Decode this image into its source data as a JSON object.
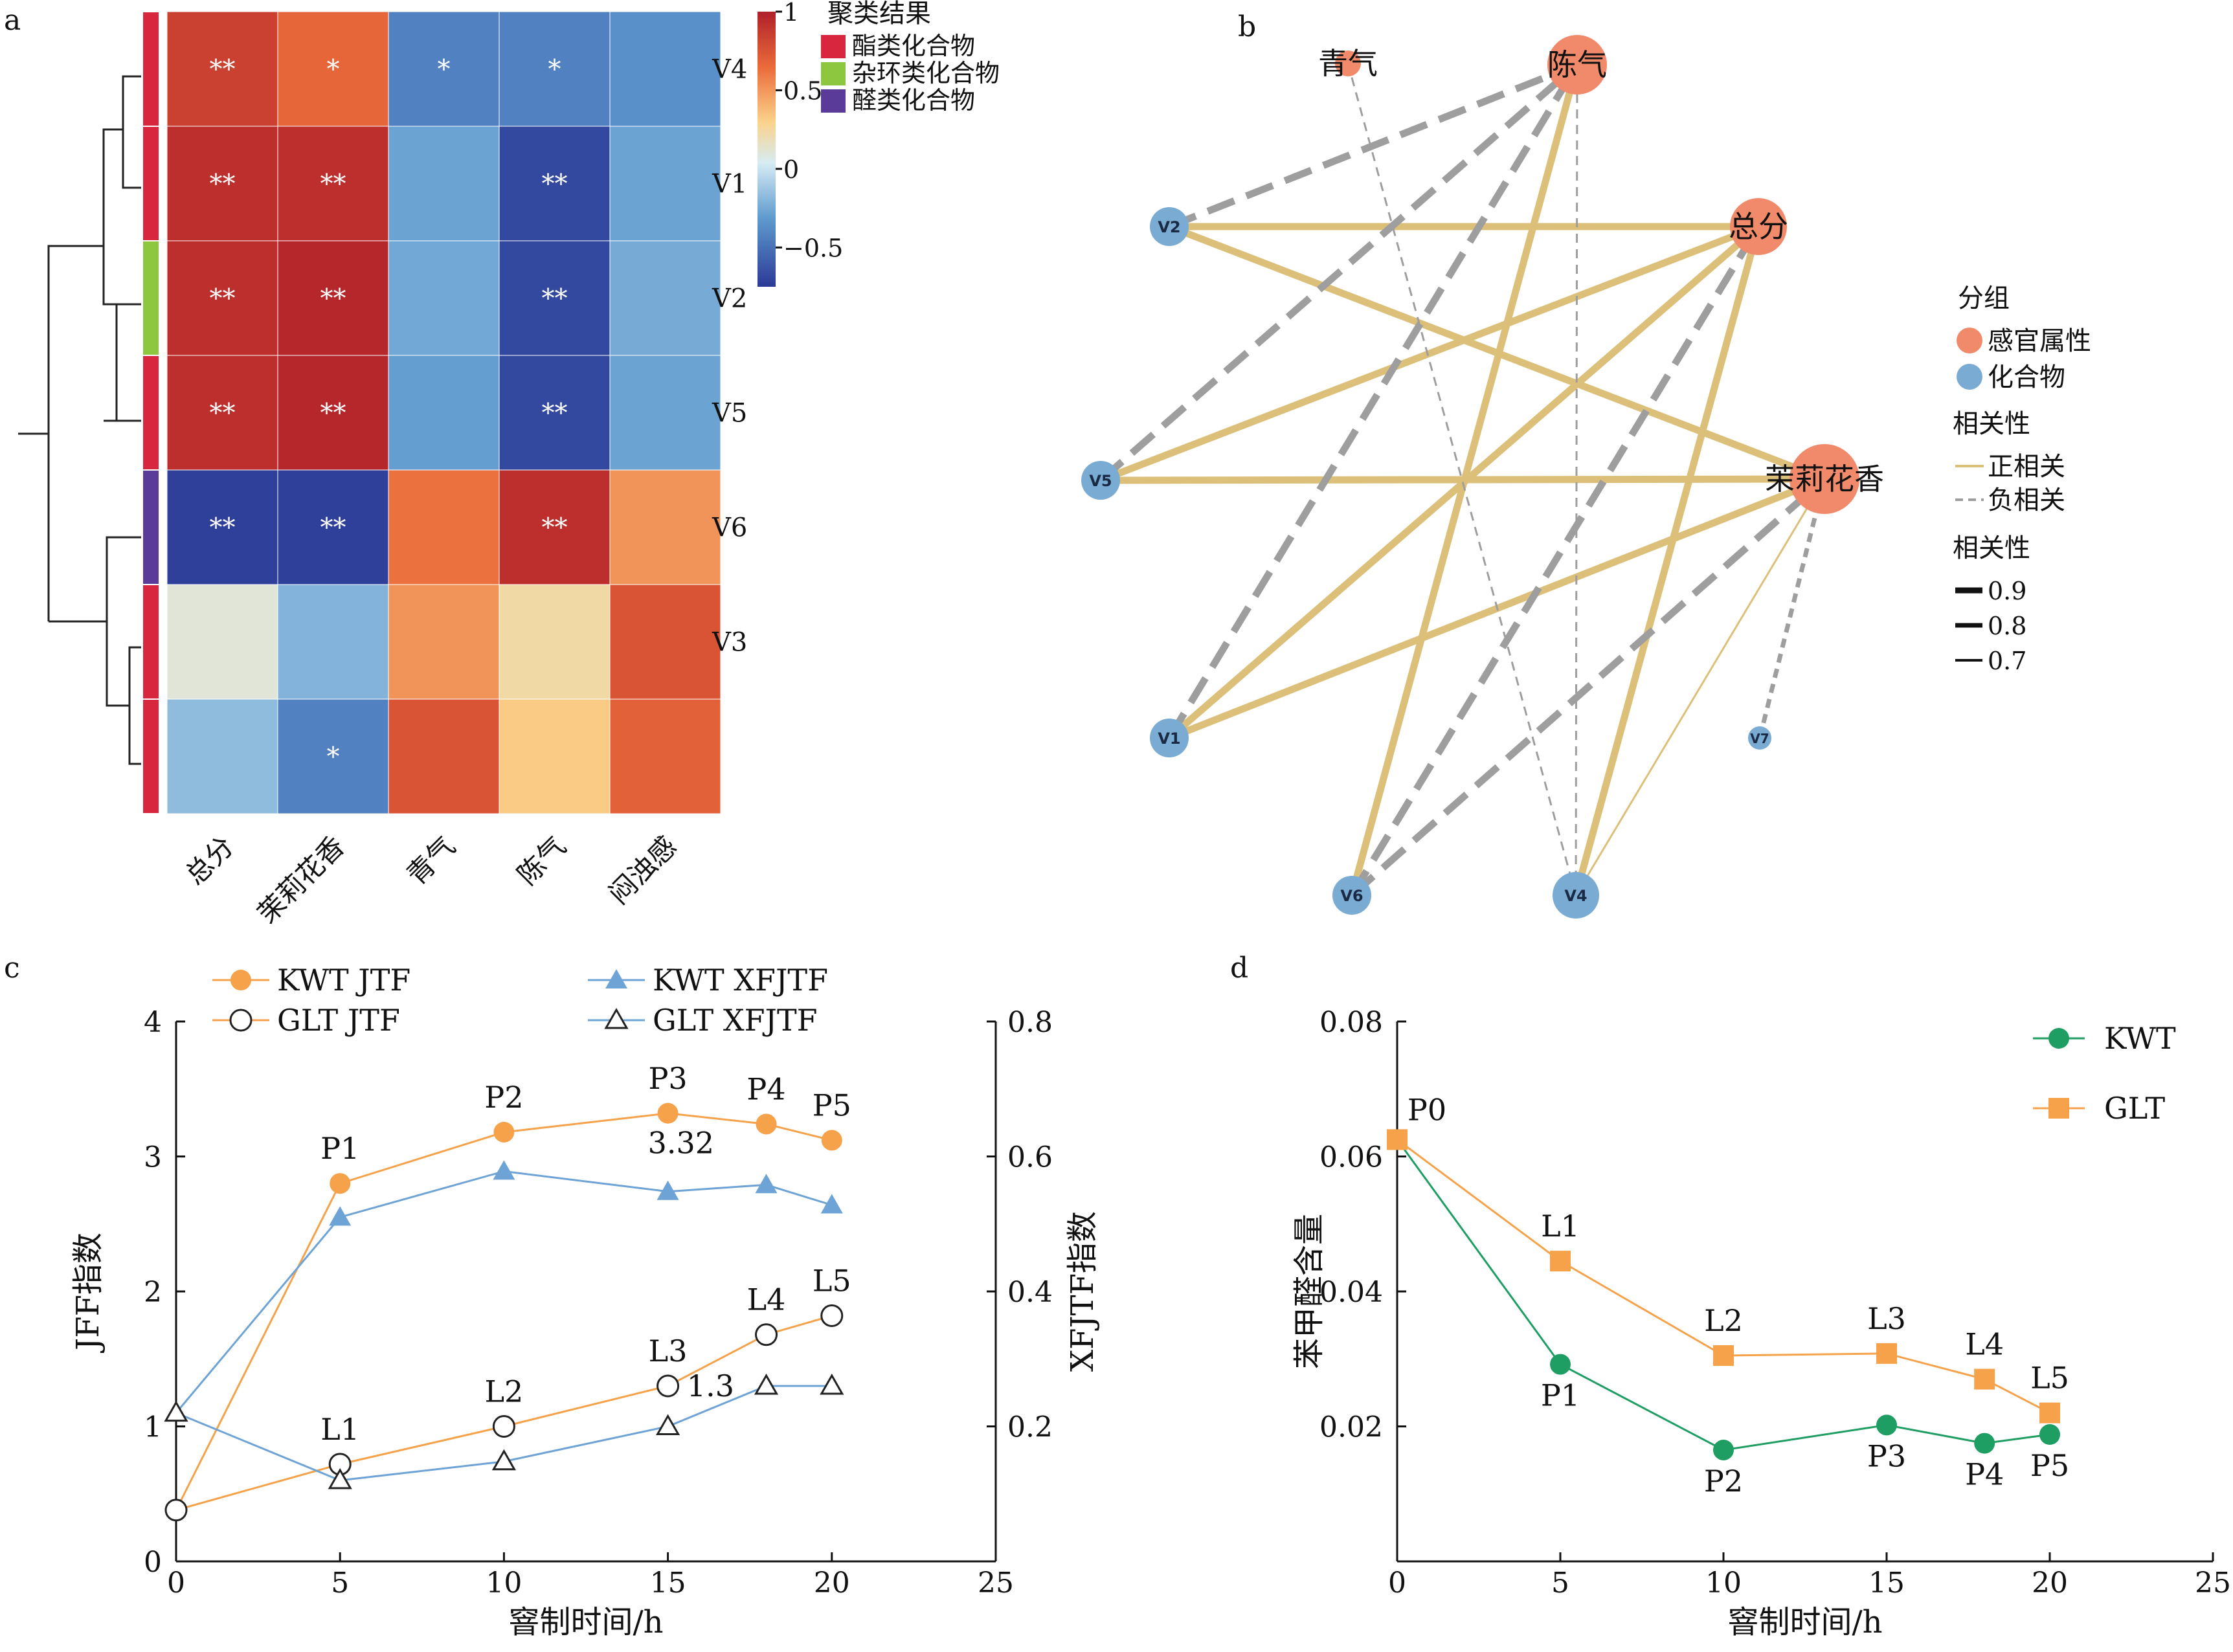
{
  "panels": {
    "a": "a",
    "b": "b",
    "c": "c",
    "d": "d"
  },
  "chart_data": [
    {
      "type": "heatmap",
      "panel": "a",
      "columns": [
        "总分",
        "茉莉花香",
        "青气",
        "陈气",
        "闷浊感"
      ],
      "rows": [
        "V4",
        "V1",
        "V2",
        "V5",
        "V6",
        "V3",
        ""
      ],
      "values": [
        [
          0.82,
          0.62,
          -0.62,
          -0.62,
          -0.55
        ],
        [
          0.92,
          0.92,
          -0.45,
          -0.88,
          -0.45
        ],
        [
          0.92,
          0.96,
          -0.42,
          -0.88,
          -0.4
        ],
        [
          0.92,
          0.96,
          -0.48,
          -0.88,
          -0.45
        ],
        [
          -0.92,
          -0.92,
          0.58,
          0.92,
          0.48
        ],
        [
          0.08,
          -0.35,
          0.48,
          0.22,
          0.72
        ],
        [
          -0.3,
          -0.62,
          0.72,
          0.32,
          0.65
        ]
      ],
      "significance": [
        [
          "**",
          "*",
          "*",
          "*",
          ""
        ],
        [
          "**",
          "**",
          "",
          "**",
          ""
        ],
        [
          "**",
          "**",
          "",
          "**",
          ""
        ],
        [
          "**",
          "**",
          "",
          "**",
          ""
        ],
        [
          "**",
          "**",
          "",
          "**",
          ""
        ],
        [
          "",
          "",
          "",
          "",
          ""
        ],
        [
          "",
          "*",
          "",
          "",
          ""
        ]
      ],
      "row_groups": [
        "酯类化合物",
        "酯类化合物",
        "杂环类化合物",
        "酯类化合物",
        "醛类化合物",
        "酯类化合物",
        "酯类化合物"
      ],
      "colorbar": {
        "min": -0.75,
        "max": 1,
        "ticks": [
          "1",
          "0.5",
          "0",
          "−0.5"
        ]
      },
      "legend": {
        "title": "聚类结果",
        "items": [
          {
            "label": "酯类化合物",
            "color": "#d7263d"
          },
          {
            "label": "杂环类化合物",
            "color": "#8dc63f"
          },
          {
            "label": "醛类化合物",
            "color": "#5b3b9a"
          }
        ]
      }
    },
    {
      "type": "network",
      "panel": "b",
      "nodes": [
        {
          "id": "青气",
          "label": "青气",
          "group": "感官属性"
        },
        {
          "id": "陈气",
          "label": "陈气",
          "group": "感官属性"
        },
        {
          "id": "总分",
          "label": "总分",
          "group": "感官属性"
        },
        {
          "id": "茉莉花香",
          "label": "茉莉花香",
          "group": "感官属性"
        },
        {
          "id": "V2",
          "label": "V2",
          "group": "化合物"
        },
        {
          "id": "V5",
          "label": "V5",
          "group": "化合物"
        },
        {
          "id": "V1",
          "label": "V1",
          "group": "化合物"
        },
        {
          "id": "V6",
          "label": "V6",
          "group": "化合物"
        },
        {
          "id": "V4",
          "label": "V4",
          "group": "化合物"
        },
        {
          "id": "V7",
          "label": "V7",
          "group": "化合物"
        }
      ],
      "edges": [
        {
          "source": "V2",
          "target": "总分",
          "sign": "positive",
          "r": 0.9
        },
        {
          "source": "V2",
          "target": "茉莉花香",
          "sign": "positive",
          "r": 0.9
        },
        {
          "source": "V5",
          "target": "总分",
          "sign": "positive",
          "r": 0.9
        },
        {
          "source": "V5",
          "target": "茉莉花香",
          "sign": "positive",
          "r": 0.9
        },
        {
          "source": "V1",
          "target": "总分",
          "sign": "positive",
          "r": 0.9
        },
        {
          "source": "V1",
          "target": "茉莉花香",
          "sign": "positive",
          "r": 0.9
        },
        {
          "source": "V6",
          "target": "陈气",
          "sign": "positive",
          "r": 0.9
        },
        {
          "source": "V4",
          "target": "总分",
          "sign": "positive",
          "r": 0.9
        },
        {
          "source": "V4",
          "target": "茉莉花香",
          "sign": "positive",
          "r": 0.7
        },
        {
          "source": "V2",
          "target": "陈气",
          "sign": "negative",
          "r": 0.9
        },
        {
          "source": "V5",
          "target": "陈气",
          "sign": "negative",
          "r": 0.9
        },
        {
          "source": "V1",
          "target": "陈气",
          "sign": "negative",
          "r": 0.9
        },
        {
          "source": "V6",
          "target": "总分",
          "sign": "negative",
          "r": 0.9
        },
        {
          "source": "V6",
          "target": "茉莉花香",
          "sign": "negative",
          "r": 0.9
        },
        {
          "source": "V4",
          "target": "陈气",
          "sign": "negative",
          "r": 0.7
        },
        {
          "source": "V4",
          "target": "青气",
          "sign": "negative",
          "r": 0.7
        },
        {
          "source": "V7",
          "target": "茉莉花香",
          "sign": "negative",
          "r": 0.8
        }
      ],
      "legend": {
        "group_title": "分组",
        "groups": [
          {
            "label": "感官属性",
            "color": "#f08a6a"
          },
          {
            "label": "化合物",
            "color": "#7aabd3"
          }
        ],
        "sign_title": "相关性",
        "signs": [
          {
            "label": "正相关",
            "color": "#dcc07a"
          },
          {
            "label": "负相关",
            "color": "#9e9e9e"
          }
        ],
        "weight_title": "相关性",
        "weights": [
          "0.9",
          "0.8",
          "0.7"
        ]
      }
    },
    {
      "type": "line",
      "panel": "c",
      "xlabel": "窨制时间/h",
      "ylabel": "JFF指数",
      "y2label": "XFJTF指数",
      "xlim": [
        0,
        25
      ],
      "ylim": [
        0,
        4
      ],
      "y2lim": [
        0,
        0.8
      ],
      "x_ticks": [
        "0",
        "5",
        "10",
        "15",
        "20",
        "25"
      ],
      "y_ticks": [
        "0",
        "1",
        "2",
        "3",
        "4"
      ],
      "y2_ticks": [
        "0.2",
        "0.4",
        "0.6",
        "0.8"
      ],
      "series": [
        {
          "name": "KWT JTF",
          "axis": "left",
          "color": "#f5a24a",
          "marker": "filled-circle",
          "x": [
            0,
            5,
            10,
            15,
            18,
            20
          ],
          "y": [
            0.38,
            2.8,
            3.18,
            3.32,
            3.24,
            3.12
          ],
          "labels": [
            "",
            "P1",
            "P2",
            "P3",
            "P4",
            "P5"
          ]
        },
        {
          "name": "GLT JTF",
          "axis": "left",
          "color": "#f5a24a",
          "marker": "open-circle",
          "x": [
            0,
            5,
            10,
            15,
            18,
            20
          ],
          "y": [
            0.38,
            0.72,
            1.0,
            1.3,
            1.68,
            1.82
          ],
          "labels": [
            "",
            "L1",
            "L2",
            "L3",
            "L4",
            "L5"
          ]
        },
        {
          "name": "KWT XFJTF",
          "axis": "right",
          "color": "#6ea3d6",
          "marker": "filled-triangle",
          "x": [
            0,
            5,
            10,
            15,
            18,
            20
          ],
          "y": [
            0.22,
            0.51,
            0.578,
            0.548,
            0.558,
            0.528
          ]
        },
        {
          "name": "GLT XFJTF",
          "axis": "right",
          "color": "#6ea3d6",
          "marker": "open-triangle",
          "x": [
            0,
            5,
            10,
            15,
            18,
            20
          ],
          "y": [
            0.22,
            0.12,
            0.148,
            0.2,
            0.26,
            0.26
          ]
        }
      ],
      "annotations": [
        {
          "text": "3.32",
          "x": 15.4,
          "y": 3.1
        },
        {
          "text": "1.3",
          "x": 16.3,
          "y": 1.3
        }
      ]
    },
    {
      "type": "line",
      "panel": "d",
      "xlabel": "窨制时间/h",
      "ylabel": "苯甲醛含量",
      "xlim": [
        0,
        25
      ],
      "ylim": [
        0,
        0.08
      ],
      "x_ticks": [
        "0",
        "5",
        "10",
        "15",
        "20",
        "25"
      ],
      "y_ticks": [
        "0.02",
        "0.04",
        "0.06",
        "0.08"
      ],
      "series": [
        {
          "name": "KWT",
          "color": "#1e9e62",
          "marker": "filled-circle",
          "x": [
            0,
            5,
            10,
            15,
            18,
            20
          ],
          "y": [
            0.0625,
            0.0292,
            0.0165,
            0.0202,
            0.0175,
            0.0188
          ],
          "labels": [
            "P0",
            "P1",
            "P2",
            "P3",
            "P4",
            "P5"
          ]
        },
        {
          "name": "GLT",
          "color": "#f5a24a",
          "marker": "filled-square",
          "x": [
            0,
            5,
            10,
            15,
            18,
            20
          ],
          "y": [
            0.0625,
            0.0445,
            0.0305,
            0.0308,
            0.027,
            0.022
          ],
          "labels": [
            "",
            "L1",
            "L2",
            "L3",
            "L4",
            "L5"
          ]
        }
      ]
    }
  ]
}
